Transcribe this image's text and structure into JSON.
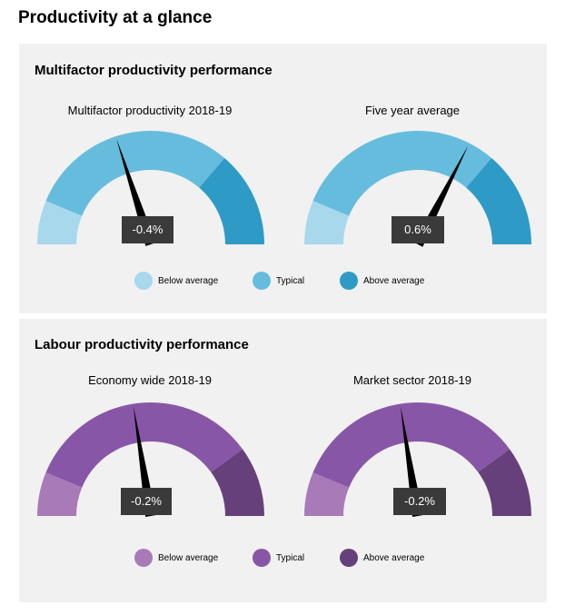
{
  "page": {
    "title": "Productivity at a glance"
  },
  "legend_labels": [
    "Below average",
    "Typical",
    "Above average"
  ],
  "colors": {
    "multifactor": [
      "#a8d8ec",
      "#66bcdd",
      "#2e9bc6"
    ],
    "labour": [
      "#a87ab8",
      "#8856a7",
      "#66407a"
    ],
    "needle": "#000000",
    "value_box": "#3a3a3a"
  },
  "chart_data": [
    {
      "type": "gauge",
      "panel_title": "Multifactor productivity performance",
      "gauges": [
        {
          "title": "Multifactor productivity 2018-19",
          "value": -0.4,
          "label": "-0.4%",
          "range": [
            -2,
            2
          ],
          "bands": [
            [
              -2,
              -1.5
            ],
            [
              -1.5,
              0.9
            ],
            [
              0.9,
              2
            ]
          ]
        },
        {
          "title": "Five year average",
          "value": 0.6,
          "label": "0.6%",
          "range": [
            -2,
            2
          ],
          "bands": [
            [
              -2,
              -1.5
            ],
            [
              -1.5,
              0.9
            ],
            [
              0.9,
              2
            ]
          ]
        }
      ]
    },
    {
      "type": "gauge",
      "panel_title": "Labour productivity performance",
      "gauges": [
        {
          "title": "Economy wide 2018-19",
          "value": -0.2,
          "label": "-0.2%",
          "range": [
            -2,
            2
          ],
          "bands": [
            [
              -2,
              -1.5
            ],
            [
              -1.5,
              1.2
            ],
            [
              1.2,
              2
            ]
          ]
        },
        {
          "title": "Market sector 2018-19",
          "value": -0.2,
          "label": "-0.2%",
          "range": [
            -2,
            2
          ],
          "bands": [
            [
              -2,
              -1.5
            ],
            [
              -1.5,
              1.2
            ],
            [
              1.2,
              2
            ]
          ]
        }
      ]
    }
  ]
}
